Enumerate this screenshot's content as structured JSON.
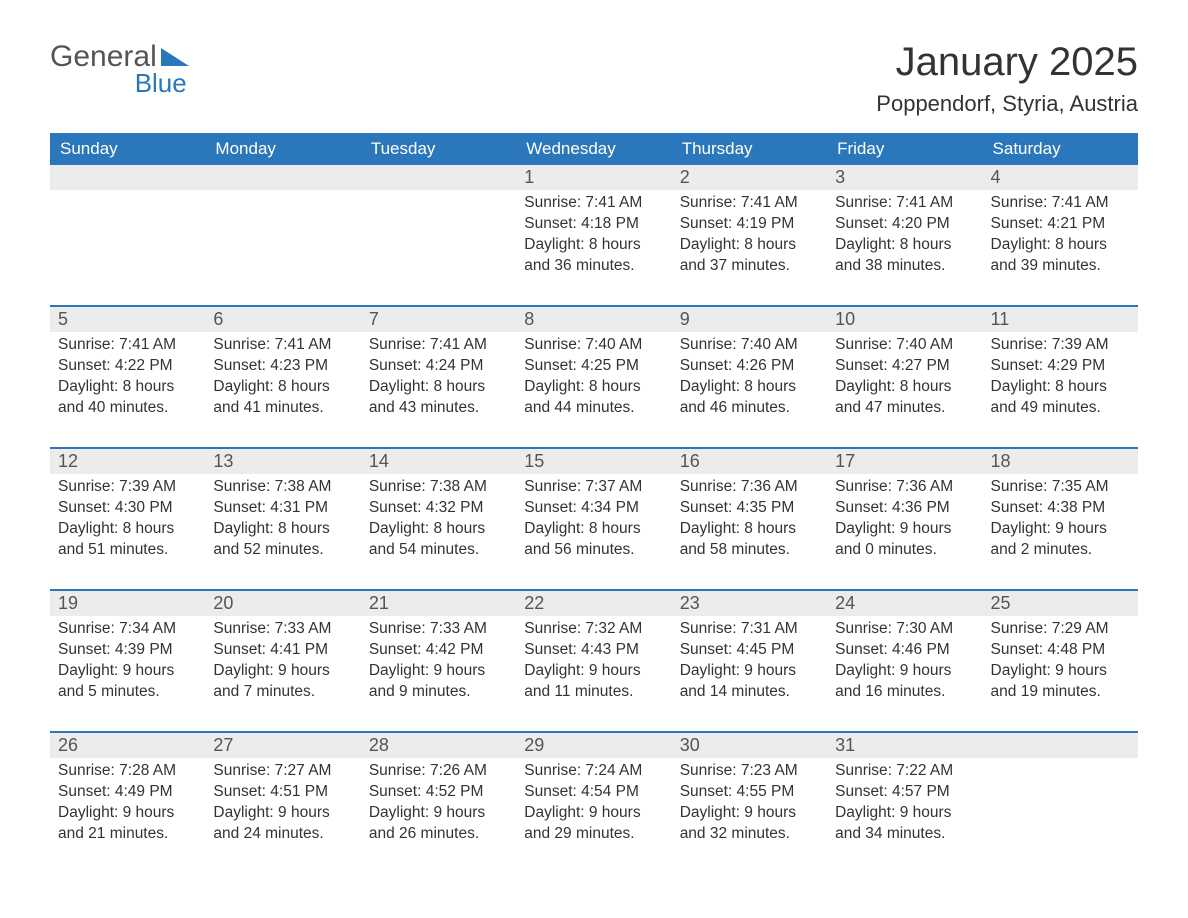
{
  "logo": {
    "word1": "General",
    "word2": "Blue"
  },
  "title": "January 2025",
  "location": "Poppendorf, Styria, Austria",
  "colors": {
    "header_bg": "#2b77bb",
    "header_text": "#ffffff",
    "date_bg": "#ececec",
    "text": "#333333",
    "rule": "#2b77bb"
  },
  "day_headers": [
    "Sunday",
    "Monday",
    "Tuesday",
    "Wednesday",
    "Thursday",
    "Friday",
    "Saturday"
  ],
  "weeks": [
    [
      {
        "n": "",
        "sr": "",
        "ss": "",
        "dl1": "",
        "dl2": ""
      },
      {
        "n": "",
        "sr": "",
        "ss": "",
        "dl1": "",
        "dl2": ""
      },
      {
        "n": "",
        "sr": "",
        "ss": "",
        "dl1": "",
        "dl2": ""
      },
      {
        "n": "1",
        "sr": "Sunrise: 7:41 AM",
        "ss": "Sunset: 4:18 PM",
        "dl1": "Daylight: 8 hours",
        "dl2": "and 36 minutes."
      },
      {
        "n": "2",
        "sr": "Sunrise: 7:41 AM",
        "ss": "Sunset: 4:19 PM",
        "dl1": "Daylight: 8 hours",
        "dl2": "and 37 minutes."
      },
      {
        "n": "3",
        "sr": "Sunrise: 7:41 AM",
        "ss": "Sunset: 4:20 PM",
        "dl1": "Daylight: 8 hours",
        "dl2": "and 38 minutes."
      },
      {
        "n": "4",
        "sr": "Sunrise: 7:41 AM",
        "ss": "Sunset: 4:21 PM",
        "dl1": "Daylight: 8 hours",
        "dl2": "and 39 minutes."
      }
    ],
    [
      {
        "n": "5",
        "sr": "Sunrise: 7:41 AM",
        "ss": "Sunset: 4:22 PM",
        "dl1": "Daylight: 8 hours",
        "dl2": "and 40 minutes."
      },
      {
        "n": "6",
        "sr": "Sunrise: 7:41 AM",
        "ss": "Sunset: 4:23 PM",
        "dl1": "Daylight: 8 hours",
        "dl2": "and 41 minutes."
      },
      {
        "n": "7",
        "sr": "Sunrise: 7:41 AM",
        "ss": "Sunset: 4:24 PM",
        "dl1": "Daylight: 8 hours",
        "dl2": "and 43 minutes."
      },
      {
        "n": "8",
        "sr": "Sunrise: 7:40 AM",
        "ss": "Sunset: 4:25 PM",
        "dl1": "Daylight: 8 hours",
        "dl2": "and 44 minutes."
      },
      {
        "n": "9",
        "sr": "Sunrise: 7:40 AM",
        "ss": "Sunset: 4:26 PM",
        "dl1": "Daylight: 8 hours",
        "dl2": "and 46 minutes."
      },
      {
        "n": "10",
        "sr": "Sunrise: 7:40 AM",
        "ss": "Sunset: 4:27 PM",
        "dl1": "Daylight: 8 hours",
        "dl2": "and 47 minutes."
      },
      {
        "n": "11",
        "sr": "Sunrise: 7:39 AM",
        "ss": "Sunset: 4:29 PM",
        "dl1": "Daylight: 8 hours",
        "dl2": "and 49 minutes."
      }
    ],
    [
      {
        "n": "12",
        "sr": "Sunrise: 7:39 AM",
        "ss": "Sunset: 4:30 PM",
        "dl1": "Daylight: 8 hours",
        "dl2": "and 51 minutes."
      },
      {
        "n": "13",
        "sr": "Sunrise: 7:38 AM",
        "ss": "Sunset: 4:31 PM",
        "dl1": "Daylight: 8 hours",
        "dl2": "and 52 minutes."
      },
      {
        "n": "14",
        "sr": "Sunrise: 7:38 AM",
        "ss": "Sunset: 4:32 PM",
        "dl1": "Daylight: 8 hours",
        "dl2": "and 54 minutes."
      },
      {
        "n": "15",
        "sr": "Sunrise: 7:37 AM",
        "ss": "Sunset: 4:34 PM",
        "dl1": "Daylight: 8 hours",
        "dl2": "and 56 minutes."
      },
      {
        "n": "16",
        "sr": "Sunrise: 7:36 AM",
        "ss": "Sunset: 4:35 PM",
        "dl1": "Daylight: 8 hours",
        "dl2": "and 58 minutes."
      },
      {
        "n": "17",
        "sr": "Sunrise: 7:36 AM",
        "ss": "Sunset: 4:36 PM",
        "dl1": "Daylight: 9 hours",
        "dl2": "and 0 minutes."
      },
      {
        "n": "18",
        "sr": "Sunrise: 7:35 AM",
        "ss": "Sunset: 4:38 PM",
        "dl1": "Daylight: 9 hours",
        "dl2": "and 2 minutes."
      }
    ],
    [
      {
        "n": "19",
        "sr": "Sunrise: 7:34 AM",
        "ss": "Sunset: 4:39 PM",
        "dl1": "Daylight: 9 hours",
        "dl2": "and 5 minutes."
      },
      {
        "n": "20",
        "sr": "Sunrise: 7:33 AM",
        "ss": "Sunset: 4:41 PM",
        "dl1": "Daylight: 9 hours",
        "dl2": "and 7 minutes."
      },
      {
        "n": "21",
        "sr": "Sunrise: 7:33 AM",
        "ss": "Sunset: 4:42 PM",
        "dl1": "Daylight: 9 hours",
        "dl2": "and 9 minutes."
      },
      {
        "n": "22",
        "sr": "Sunrise: 7:32 AM",
        "ss": "Sunset: 4:43 PM",
        "dl1": "Daylight: 9 hours",
        "dl2": "and 11 minutes."
      },
      {
        "n": "23",
        "sr": "Sunrise: 7:31 AM",
        "ss": "Sunset: 4:45 PM",
        "dl1": "Daylight: 9 hours",
        "dl2": "and 14 minutes."
      },
      {
        "n": "24",
        "sr": "Sunrise: 7:30 AM",
        "ss": "Sunset: 4:46 PM",
        "dl1": "Daylight: 9 hours",
        "dl2": "and 16 minutes."
      },
      {
        "n": "25",
        "sr": "Sunrise: 7:29 AM",
        "ss": "Sunset: 4:48 PM",
        "dl1": "Daylight: 9 hours",
        "dl2": "and 19 minutes."
      }
    ],
    [
      {
        "n": "26",
        "sr": "Sunrise: 7:28 AM",
        "ss": "Sunset: 4:49 PM",
        "dl1": "Daylight: 9 hours",
        "dl2": "and 21 minutes."
      },
      {
        "n": "27",
        "sr": "Sunrise: 7:27 AM",
        "ss": "Sunset: 4:51 PM",
        "dl1": "Daylight: 9 hours",
        "dl2": "and 24 minutes."
      },
      {
        "n": "28",
        "sr": "Sunrise: 7:26 AM",
        "ss": "Sunset: 4:52 PM",
        "dl1": "Daylight: 9 hours",
        "dl2": "and 26 minutes."
      },
      {
        "n": "29",
        "sr": "Sunrise: 7:24 AM",
        "ss": "Sunset: 4:54 PM",
        "dl1": "Daylight: 9 hours",
        "dl2": "and 29 minutes."
      },
      {
        "n": "30",
        "sr": "Sunrise: 7:23 AM",
        "ss": "Sunset: 4:55 PM",
        "dl1": "Daylight: 9 hours",
        "dl2": "and 32 minutes."
      },
      {
        "n": "31",
        "sr": "Sunrise: 7:22 AM",
        "ss": "Sunset: 4:57 PM",
        "dl1": "Daylight: 9 hours",
        "dl2": "and 34 minutes."
      },
      {
        "n": "",
        "sr": "",
        "ss": "",
        "dl1": "",
        "dl2": ""
      }
    ]
  ]
}
